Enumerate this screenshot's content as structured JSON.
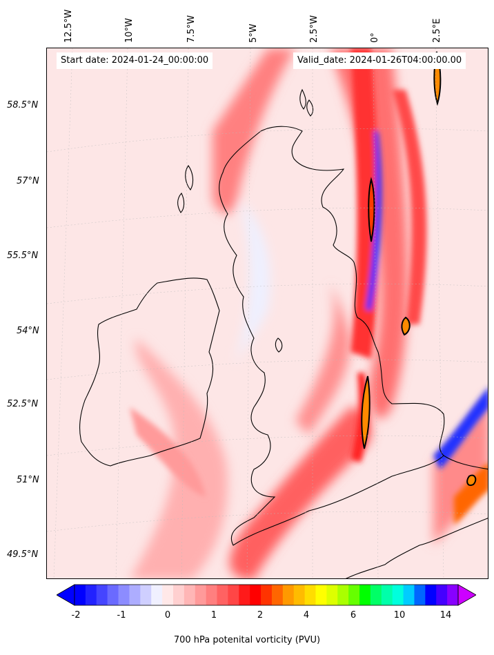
{
  "header": {
    "start_date": "Start date: 2024-01-24_00:00:00",
    "valid_date": "Valid_date: 2024-01-26T04:00:00.00"
  },
  "axes": {
    "lon_labels": [
      "12.5°W",
      "10°W",
      "7.5°W",
      "5°W",
      "2.5°W",
      "0°",
      "2.5°E"
    ],
    "lat_labels": [
      "58.5°N",
      "57°N",
      "55.5°N",
      "54°N",
      "52.5°N",
      "51°N",
      "49.5°N"
    ]
  },
  "colorbar": {
    "label": "700 hPa potenital vorticity (PVU)",
    "ticks": [
      "-2",
      "-1",
      "0",
      "1",
      "2",
      "4",
      "6",
      "10",
      "14"
    ],
    "colors": [
      "#0000ff",
      "#2222ff",
      "#4545ff",
      "#6a6aff",
      "#8c8cff",
      "#adadff",
      "#cfcfff",
      "#f0f0ff",
      "#ffe8e8",
      "#ffd0d0",
      "#ffb6b6",
      "#ff9a9a",
      "#ff7f7f",
      "#ff6262",
      "#ff4646",
      "#ff1a1a",
      "#ff0000",
      "#ff3300",
      "#ff6600",
      "#ff9900",
      "#ffbb00",
      "#ffdd00",
      "#ffff00",
      "#ddff00",
      "#aaff00",
      "#66ff00",
      "#00ff00",
      "#00ff66",
      "#00ffaa",
      "#00ffdd",
      "#00ccff",
      "#0066ff",
      "#0000ff",
      "#4400ff",
      "#8800ff"
    ],
    "extend_low": "#0000ff",
    "extend_high": "#cc00ff"
  },
  "map": {
    "background": "#fde6e6",
    "land_outline": "#000000",
    "high_pv_color": "#ff0000",
    "low_pv_color": "#0000ff"
  }
}
